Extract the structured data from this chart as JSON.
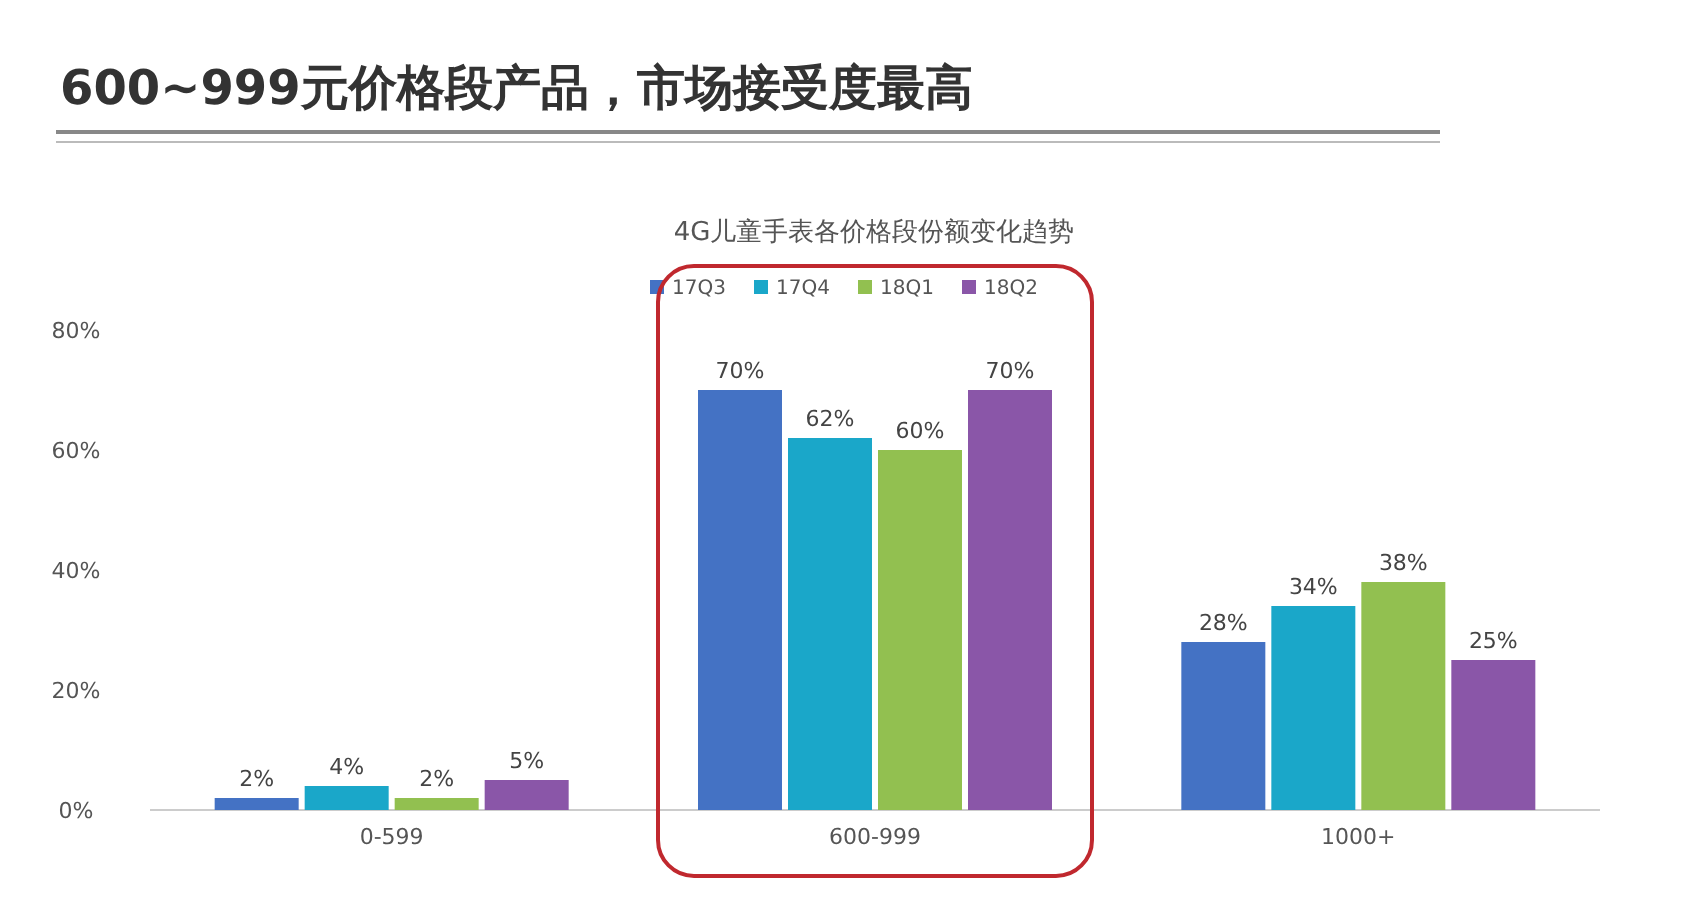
{
  "chart_data": {
    "type": "bar",
    "title": "600~999元价格段产品，市场接受度最高",
    "subtitle": "4G儿童手表各价格段份额变化趋势",
    "categories": [
      "0-599",
      "600-999",
      "1000+"
    ],
    "series": [
      {
        "name": "17Q3",
        "color": "#4472c4",
        "values": [
          2,
          70,
          28
        ],
        "value_labels": [
          "2%",
          "70%",
          "28%"
        ]
      },
      {
        "name": "17Q4",
        "color": "#1aa7c9",
        "values": [
          4,
          62,
          34
        ],
        "value_labels": [
          "4%",
          "62%",
          "34%"
        ]
      },
      {
        "name": "18Q1",
        "color": "#92c050",
        "values": [
          2,
          60,
          38
        ],
        "value_labels": [
          "2%",
          "60%",
          "38%"
        ]
      },
      {
        "name": "18Q2",
        "color": "#8a56a8",
        "values": [
          5,
          70,
          25
        ],
        "value_labels": [
          "5%",
          "70%",
          "25%"
        ]
      }
    ],
    "ylim": [
      0,
      80
    ],
    "yticks": [
      {
        "value": 0,
        "label": "0%"
      },
      {
        "value": 20,
        "label": "20%"
      },
      {
        "value": 40,
        "label": "40%"
      },
      {
        "value": 60,
        "label": "60%"
      },
      {
        "value": 80,
        "label": "80%"
      }
    ],
    "grid": false,
    "legend": "top"
  }
}
